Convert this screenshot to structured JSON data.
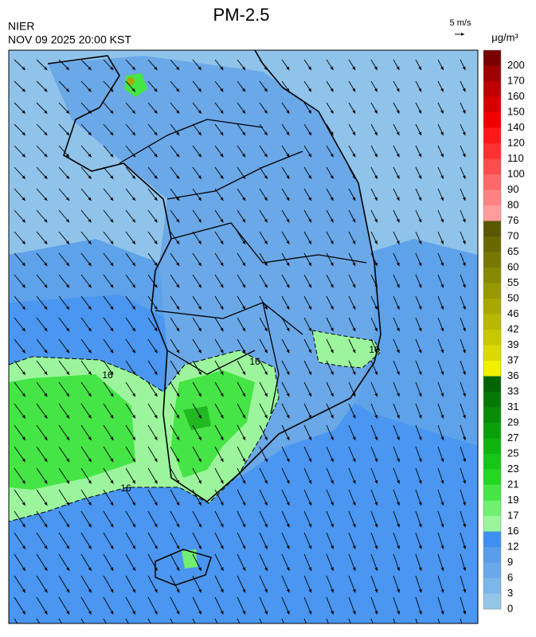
{
  "header": {
    "title": "PM-2.5",
    "agency": "NIER",
    "datetime": "NOV 09 2025 20:00 KST",
    "wind_scale": "5 m/s"
  },
  "colorbar": {
    "unit": "μg/m³",
    "ticks": [
      0,
      3,
      6,
      9,
      12,
      16,
      17,
      19,
      21,
      23,
      25,
      27,
      29,
      31,
      33,
      36,
      37,
      39,
      42,
      46,
      50,
      55,
      60,
      65,
      70,
      76,
      80,
      90,
      100,
      110,
      120,
      140,
      150,
      160,
      170,
      200
    ],
    "colors": [
      "#93c6e6",
      "#7ab6e8",
      "#69a9ea",
      "#5a9dec",
      "#3f8ff2",
      "#9cf59c",
      "#70ef70",
      "#45e545",
      "#22d822",
      "#16c616",
      "#10b410",
      "#0ba00b",
      "#088c08",
      "#067806",
      "#046404",
      "#f0f000",
      "#dada00",
      "#c8c800",
      "#b8b800",
      "#a8a800",
      "#989800",
      "#888800",
      "#787800",
      "#686800",
      "#585800",
      "#ff9c9c",
      "#ff8282",
      "#ff6868",
      "#ff4c4c",
      "#ff3232",
      "#ff1818",
      "#f00000",
      "#d80000",
      "#c00000",
      "#a00000",
      "#780000"
    ]
  },
  "map": {
    "contour_labels": [
      "16",
      "16",
      "16",
      "16"
    ]
  }
}
